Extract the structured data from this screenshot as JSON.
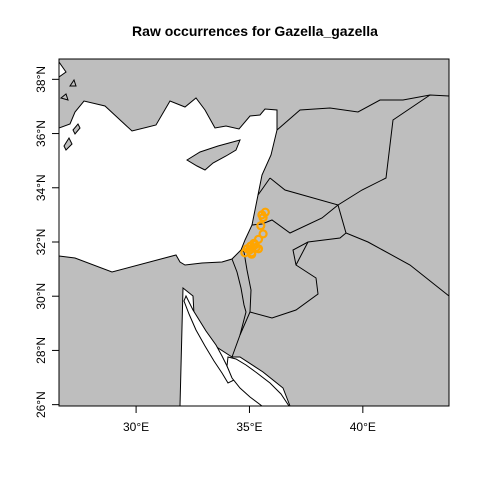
{
  "title": "Raw occurrences for Gazella_gazella",
  "map": {
    "lon_range": [
      26.6,
      43.8
    ],
    "lat_range": [
      25.95,
      38.75
    ],
    "land_color": "#bebebe",
    "sea_color": "#ffffff",
    "border_color": "#000000",
    "point_color": "#ffa500",
    "x_ticks": [
      {
        "value": 30,
        "label": "30°E"
      },
      {
        "value": 35,
        "label": "35°E"
      },
      {
        "value": 40,
        "label": "40°E"
      }
    ],
    "y_ticks": [
      {
        "value": 26,
        "label": "26°N"
      },
      {
        "value": 28,
        "label": "28°N"
      },
      {
        "value": 30,
        "label": "30°N"
      },
      {
        "value": 32,
        "label": "32°N"
      },
      {
        "value": 34,
        "label": "34°N"
      },
      {
        "value": 36,
        "label": "36°N"
      },
      {
        "value": 38,
        "label": "38°N"
      }
    ]
  },
  "chart_data": {
    "type": "scatter",
    "title": "Raw occurrences for Gazella_gazella",
    "x": [
      35.7,
      35.6,
      35.5,
      35.6,
      35.4,
      35.2,
      35.3,
      35.0,
      34.8,
      35.1,
      35.4,
      35.1,
      34.9,
      35.25,
      35.55,
      35.05
    ],
    "y": [
      33.1,
      32.9,
      32.6,
      32.3,
      32.1,
      31.95,
      31.8,
      31.7,
      31.6,
      31.55,
      31.75,
      31.6,
      31.75,
      31.9,
      33.0,
      31.85
    ],
    "xlabel": "",
    "ylabel": "",
    "xlim": [
      26.6,
      43.8
    ],
    "ylim": [
      25.95,
      38.75
    ]
  }
}
